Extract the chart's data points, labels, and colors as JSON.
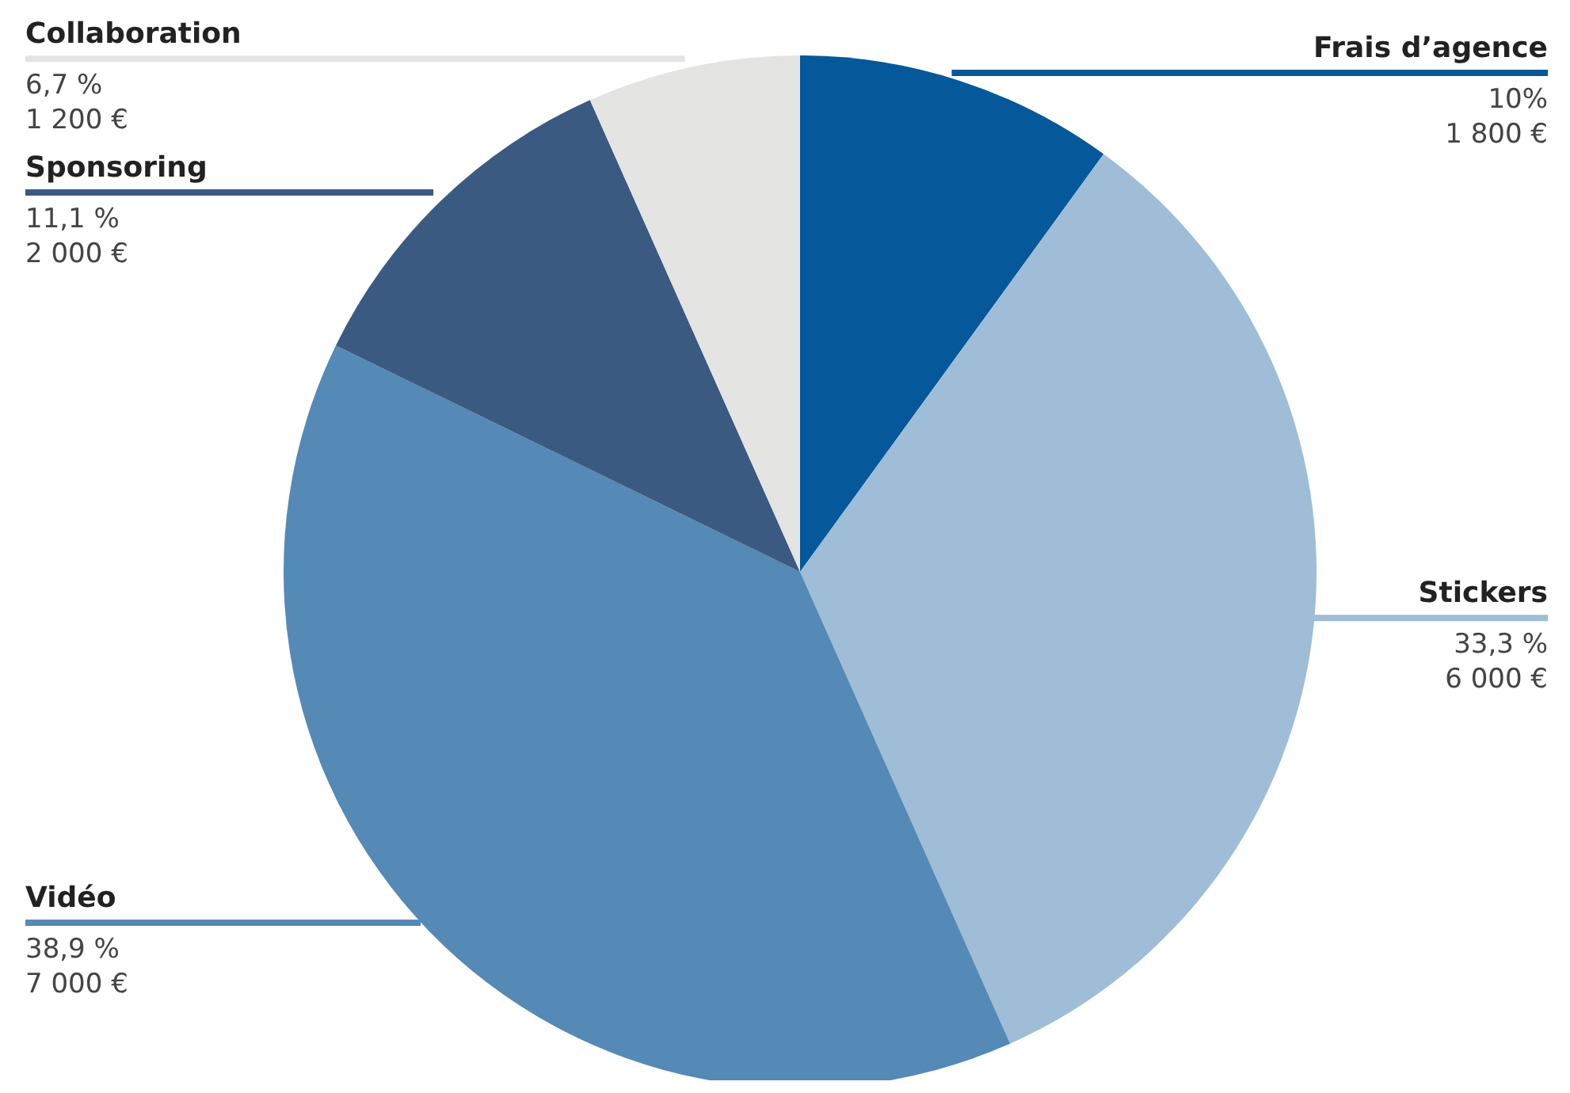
{
  "chart_data": {
    "type": "pie",
    "categories": [
      "Frais d’agence",
      "Stickers",
      "Vidéo",
      "Sponsoring",
      "Collaboration"
    ],
    "values": [
      1800,
      6000,
      7000,
      2000,
      1200
    ],
    "colors": [
      "#05589a",
      "#9fbdd6",
      "#5589b6",
      "#3b5a82",
      "#e4e4e2"
    ],
    "value_labels": [
      "10%\n1 800 €",
      "33,3 %\n6 000 €",
      "38,9 %\n7 000 €",
      "11,1 %\n2 000 €",
      "6,7 %\n1 200 €"
    ]
  }
}
